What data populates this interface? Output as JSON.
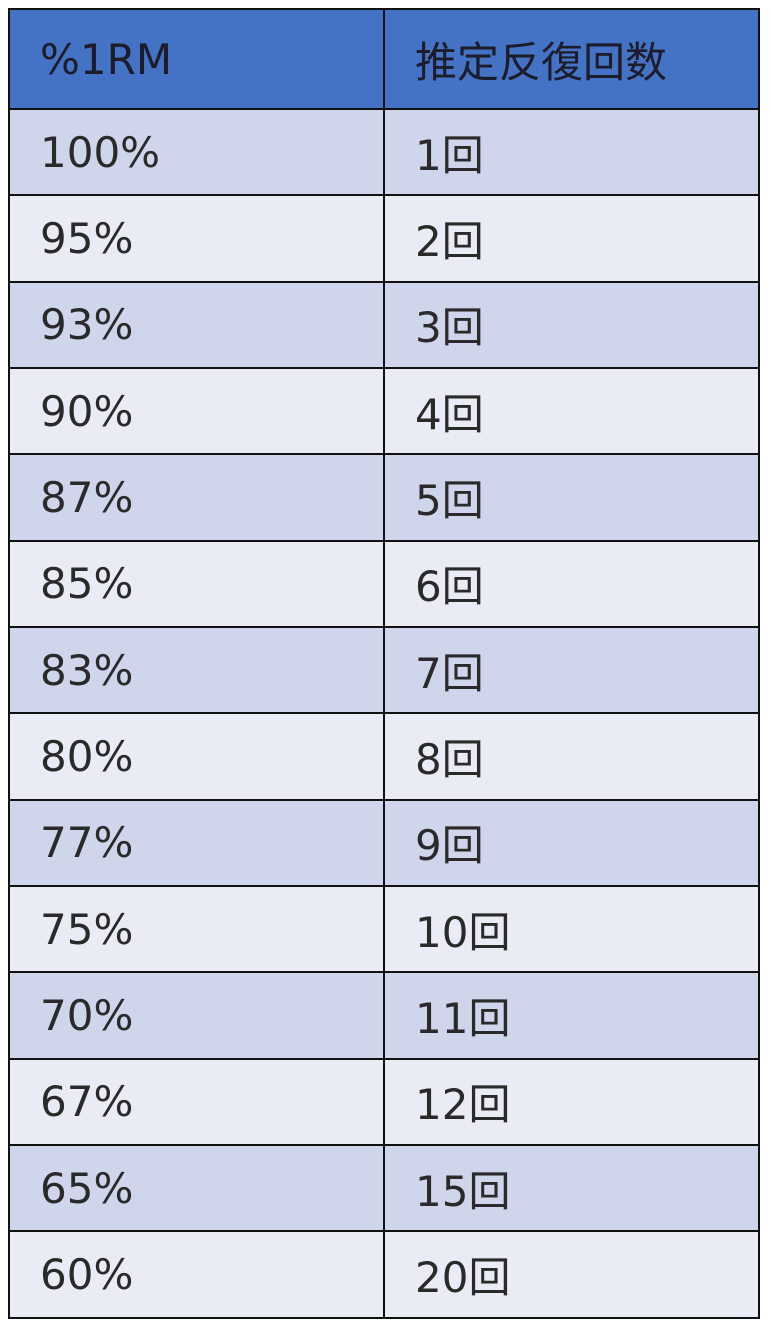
{
  "table": {
    "header": [
      "%1RM",
      "推定反復回数"
    ],
    "rows": [
      [
        "100%",
        "1回"
      ],
      [
        "95%",
        "2回"
      ],
      [
        "93%",
        "3回"
      ],
      [
        "90%",
        "4回"
      ],
      [
        "87%",
        "5回"
      ],
      [
        "85%",
        "6回"
      ],
      [
        "83%",
        "7回"
      ],
      [
        "80%",
        "8回"
      ],
      [
        "77%",
        "9回"
      ],
      [
        "75%",
        "10回"
      ],
      [
        "70%",
        "11回"
      ],
      [
        "67%",
        "12回"
      ],
      [
        "65%",
        "15回"
      ],
      [
        "60%",
        "20回"
      ]
    ]
  }
}
